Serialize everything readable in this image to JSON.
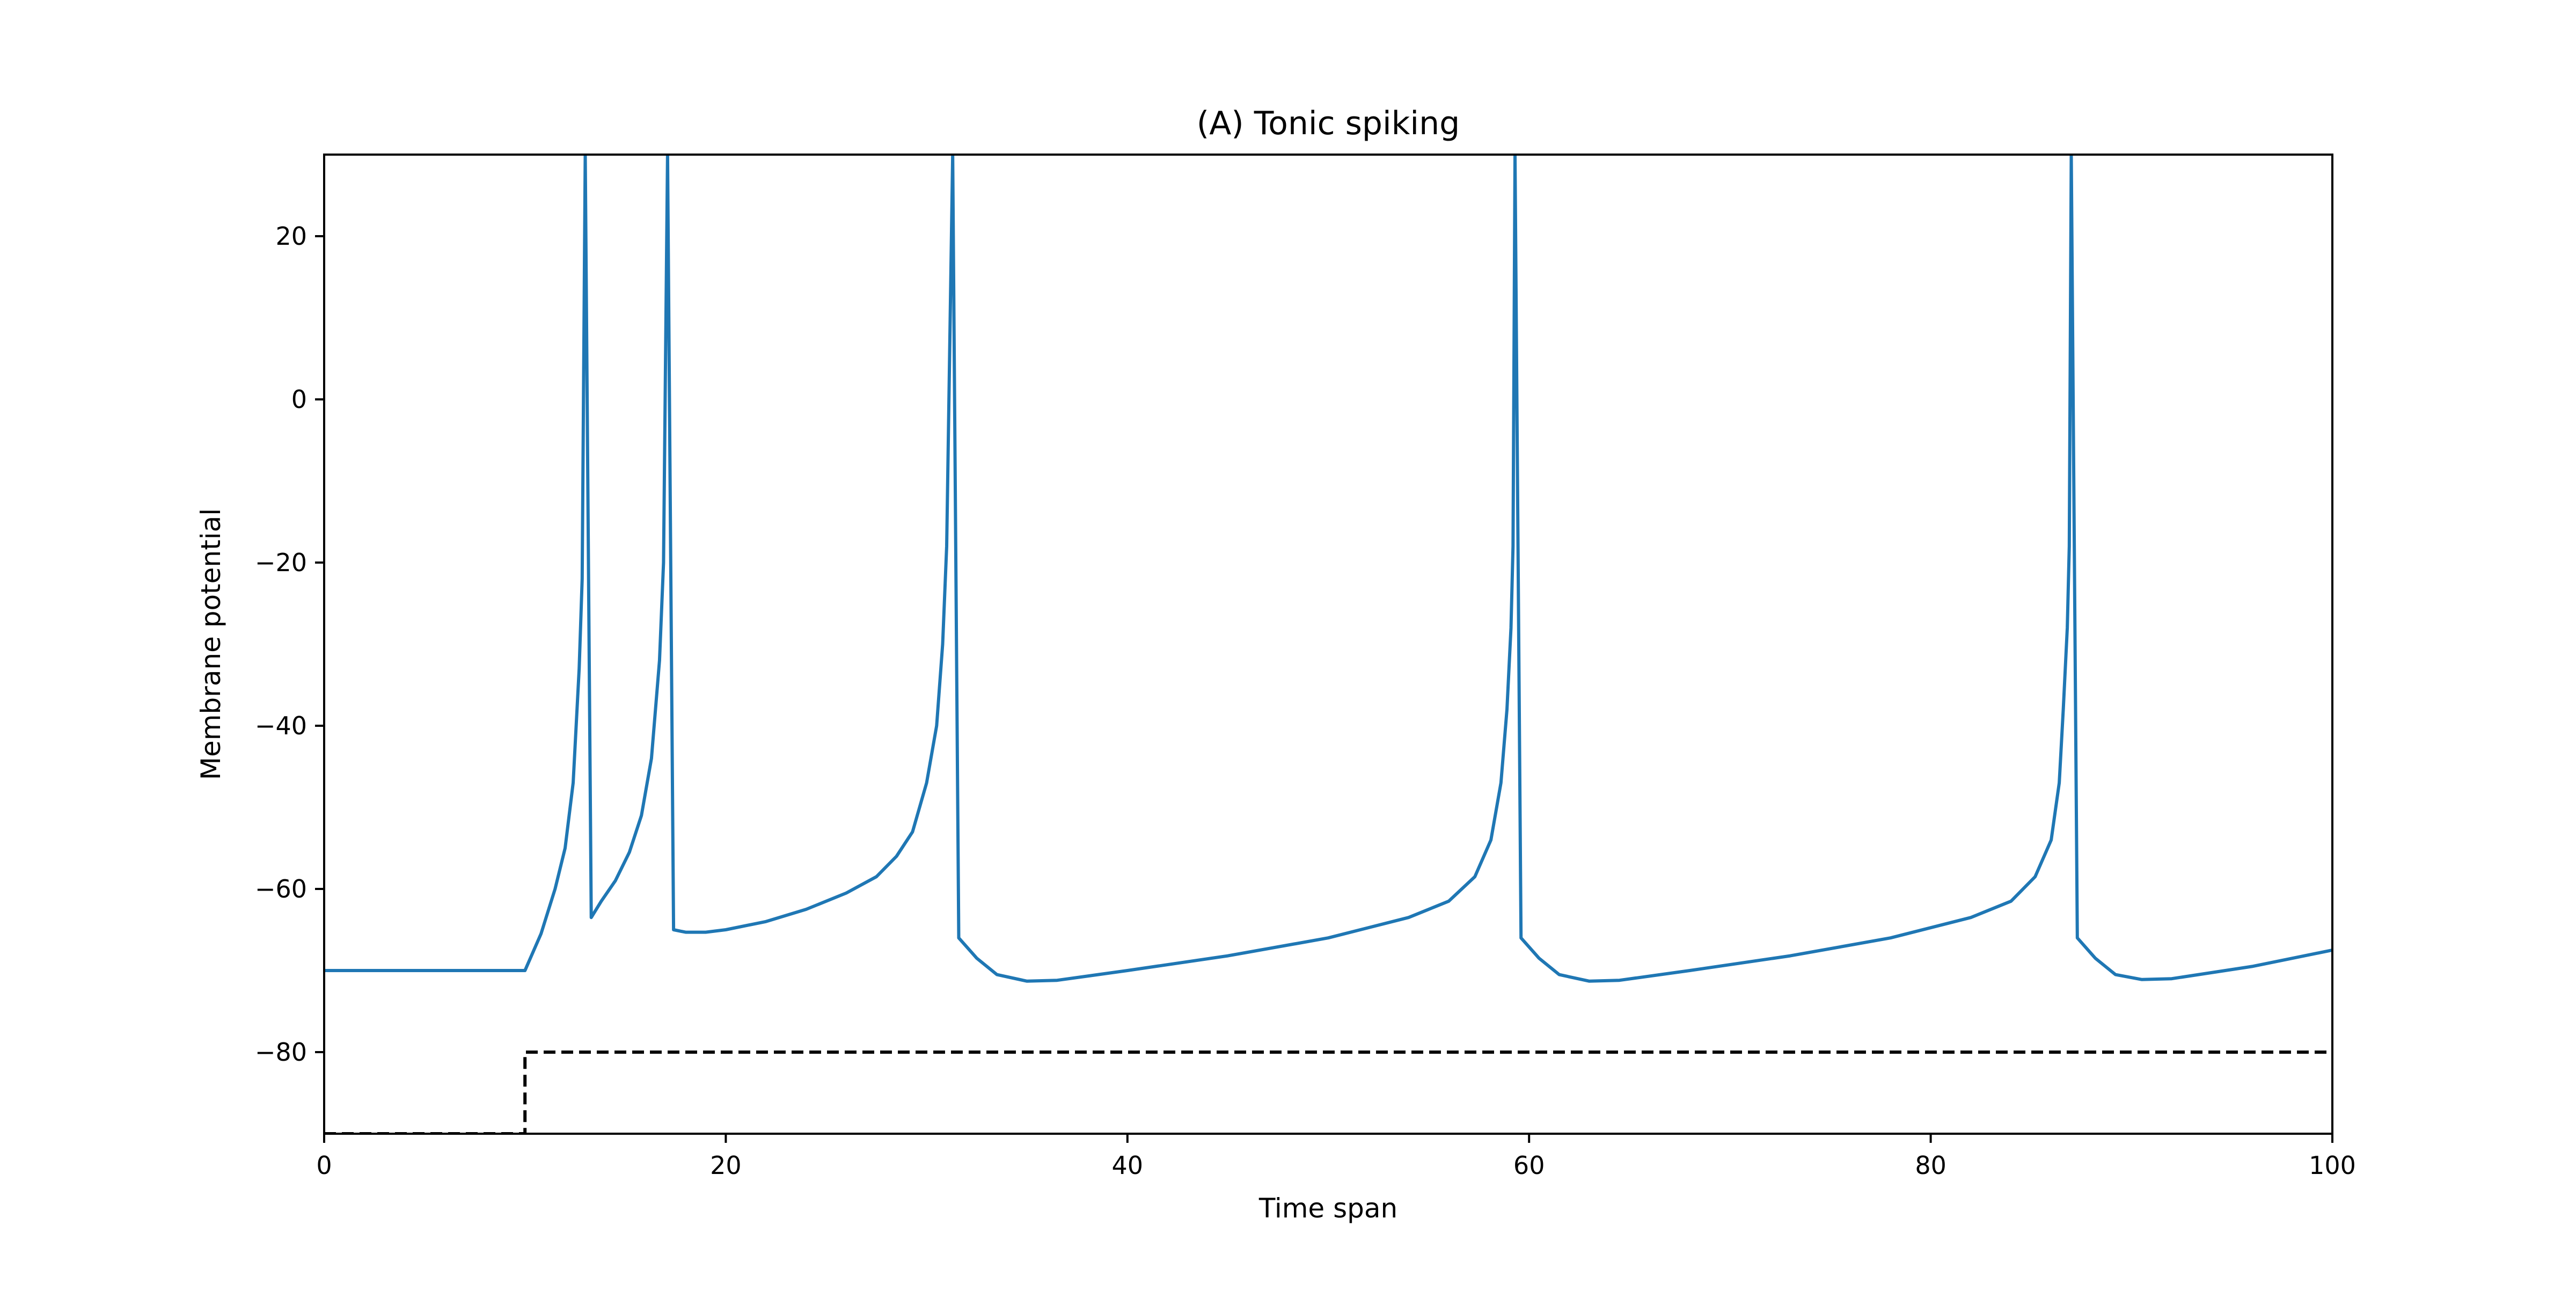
{
  "chart_data": {
    "type": "line",
    "title": "(A) Tonic spiking",
    "xlabel": "Time span",
    "ylabel": "Membrane potential",
    "xlim": [
      0,
      100
    ],
    "ylim": [
      -90,
      30
    ],
    "xticks": [
      0,
      20,
      40,
      60,
      80,
      100
    ],
    "yticks": [
      -80,
      -60,
      -40,
      -20,
      0,
      20
    ],
    "grid": false,
    "legend": "none",
    "series": [
      {
        "style": "solid",
        "color": "#1f77b4",
        "points": [
          [
            0,
            -70
          ],
          [
            10,
            -70
          ],
          [
            10.8,
            -65.5
          ],
          [
            11.5,
            -60
          ],
          [
            12,
            -55
          ],
          [
            12.4,
            -47
          ],
          [
            12.7,
            -33
          ],
          [
            12.85,
            -22
          ],
          [
            13,
            30
          ],
          [
            13.3,
            -63.5
          ],
          [
            13.8,
            -61.5
          ],
          [
            14.5,
            -59
          ],
          [
            15.2,
            -55.5
          ],
          [
            15.8,
            -51
          ],
          [
            16.3,
            -44
          ],
          [
            16.7,
            -32
          ],
          [
            16.9,
            -20
          ],
          [
            17.1,
            30
          ],
          [
            17.4,
            -65
          ],
          [
            18,
            -65.3
          ],
          [
            19,
            -65.3
          ],
          [
            20,
            -65
          ],
          [
            22,
            -64
          ],
          [
            24,
            -62.5
          ],
          [
            26,
            -60.5
          ],
          [
            27.5,
            -58.5
          ],
          [
            28.5,
            -56
          ],
          [
            29.3,
            -53
          ],
          [
            30,
            -47
          ],
          [
            30.5,
            -40
          ],
          [
            30.8,
            -30
          ],
          [
            31,
            -18
          ],
          [
            31.3,
            30
          ],
          [
            31.6,
            -66
          ],
          [
            32.5,
            -68.5
          ],
          [
            33.5,
            -70.5
          ],
          [
            35,
            -71.3
          ],
          [
            36.5,
            -71.2
          ],
          [
            40,
            -70
          ],
          [
            45,
            -68.2
          ],
          [
            50,
            -66
          ],
          [
            54,
            -63.5
          ],
          [
            56,
            -61.5
          ],
          [
            57.3,
            -58.5
          ],
          [
            58.1,
            -54
          ],
          [
            58.6,
            -47
          ],
          [
            58.9,
            -38
          ],
          [
            59.1,
            -28
          ],
          [
            59.2,
            -18
          ],
          [
            59.3,
            30
          ],
          [
            59.6,
            -66
          ],
          [
            60.5,
            -68.5
          ],
          [
            61.5,
            -70.5
          ],
          [
            63,
            -71.3
          ],
          [
            64.5,
            -71.2
          ],
          [
            68,
            -70
          ],
          [
            73,
            -68.2
          ],
          [
            78,
            -66
          ],
          [
            82,
            -63.5
          ],
          [
            84,
            -61.5
          ],
          [
            85.2,
            -58.5
          ],
          [
            86,
            -54
          ],
          [
            86.4,
            -47
          ],
          [
            86.6,
            -38
          ],
          [
            86.8,
            -28
          ],
          [
            86.9,
            -18
          ],
          [
            87,
            30
          ],
          [
            87.3,
            -66
          ],
          [
            88.2,
            -68.5
          ],
          [
            89.2,
            -70.5
          ],
          [
            90.5,
            -71.1
          ],
          [
            92,
            -71
          ],
          [
            96,
            -69.5
          ],
          [
            100,
            -67.5
          ]
        ]
      },
      {
        "style": "dashed",
        "color": "#000000",
        "points": [
          [
            0,
            -90
          ],
          [
            10,
            -90
          ],
          [
            10,
            -80
          ],
          [
            100,
            -80
          ]
        ]
      }
    ]
  }
}
